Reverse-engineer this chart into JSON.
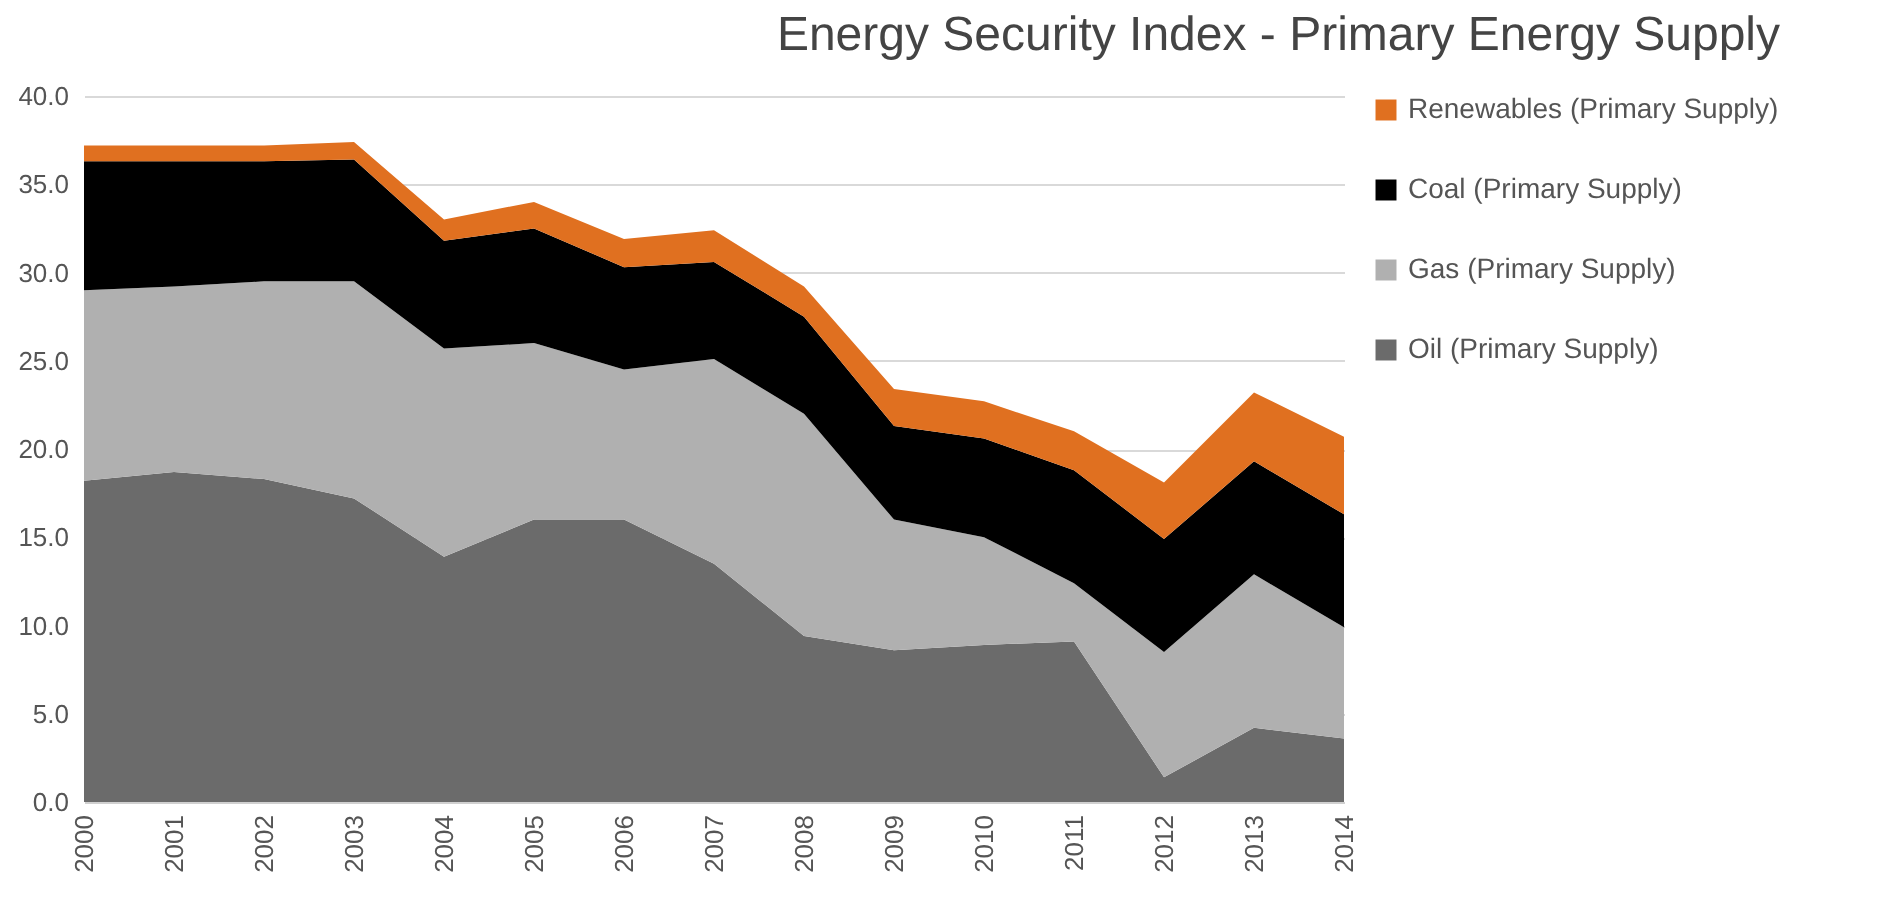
{
  "chart_data": {
    "type": "area",
    "title": "Energy Security Index - Primary Energy Supply",
    "categories": [
      "2000",
      "2001",
      "2002",
      "2003",
      "2004",
      "2005",
      "2006",
      "2007",
      "2008",
      "2009",
      "2010",
      "2011",
      "2012",
      "2013",
      "2014"
    ],
    "stacked": true,
    "series": [
      {
        "name": "Oil (Primary Supply)",
        "color": "#6b6b6b",
        "values": [
          18.2,
          18.7,
          18.3,
          17.2,
          13.9,
          16.0,
          16.0,
          13.5,
          9.4,
          8.6,
          8.9,
          9.1,
          1.4,
          4.2,
          3.6
        ]
      },
      {
        "name": "Gas (Primary Supply)",
        "color": "#b0b0b0",
        "values": [
          10.8,
          10.5,
          11.2,
          12.3,
          11.8,
          10.0,
          8.5,
          11.6,
          12.6,
          7.4,
          6.1,
          3.3,
          7.1,
          8.7,
          6.3
        ]
      },
      {
        "name": "Coal (Primary Supply)",
        "color": "#000000",
        "values": [
          7.3,
          7.1,
          6.8,
          6.9,
          6.1,
          6.5,
          5.8,
          5.5,
          5.5,
          5.3,
          5.6,
          6.4,
          6.4,
          6.4,
          6.4
        ]
      },
      {
        "name": "Renewables (Primary Supply)",
        "color": "#e07020",
        "values": [
          0.9,
          0.9,
          0.9,
          1.0,
          1.2,
          1.5,
          1.6,
          1.8,
          1.7,
          2.1,
          2.1,
          2.2,
          3.2,
          3.9,
          4.4
        ]
      }
    ],
    "ylim": [
      0,
      40
    ],
    "yticks": [
      {
        "value": 0,
        "label": "0.0"
      },
      {
        "value": 5,
        "label": "5.0"
      },
      {
        "value": 10,
        "label": "10.0"
      },
      {
        "value": 15,
        "label": "15.0"
      },
      {
        "value": 20,
        "label": "20.0"
      },
      {
        "value": 25,
        "label": "25.0"
      },
      {
        "value": 30,
        "label": "30.0"
      },
      {
        "value": 35,
        "label": "35.0"
      },
      {
        "value": 40,
        "label": "40.0"
      }
    ],
    "grid": "y",
    "legend": "right"
  }
}
